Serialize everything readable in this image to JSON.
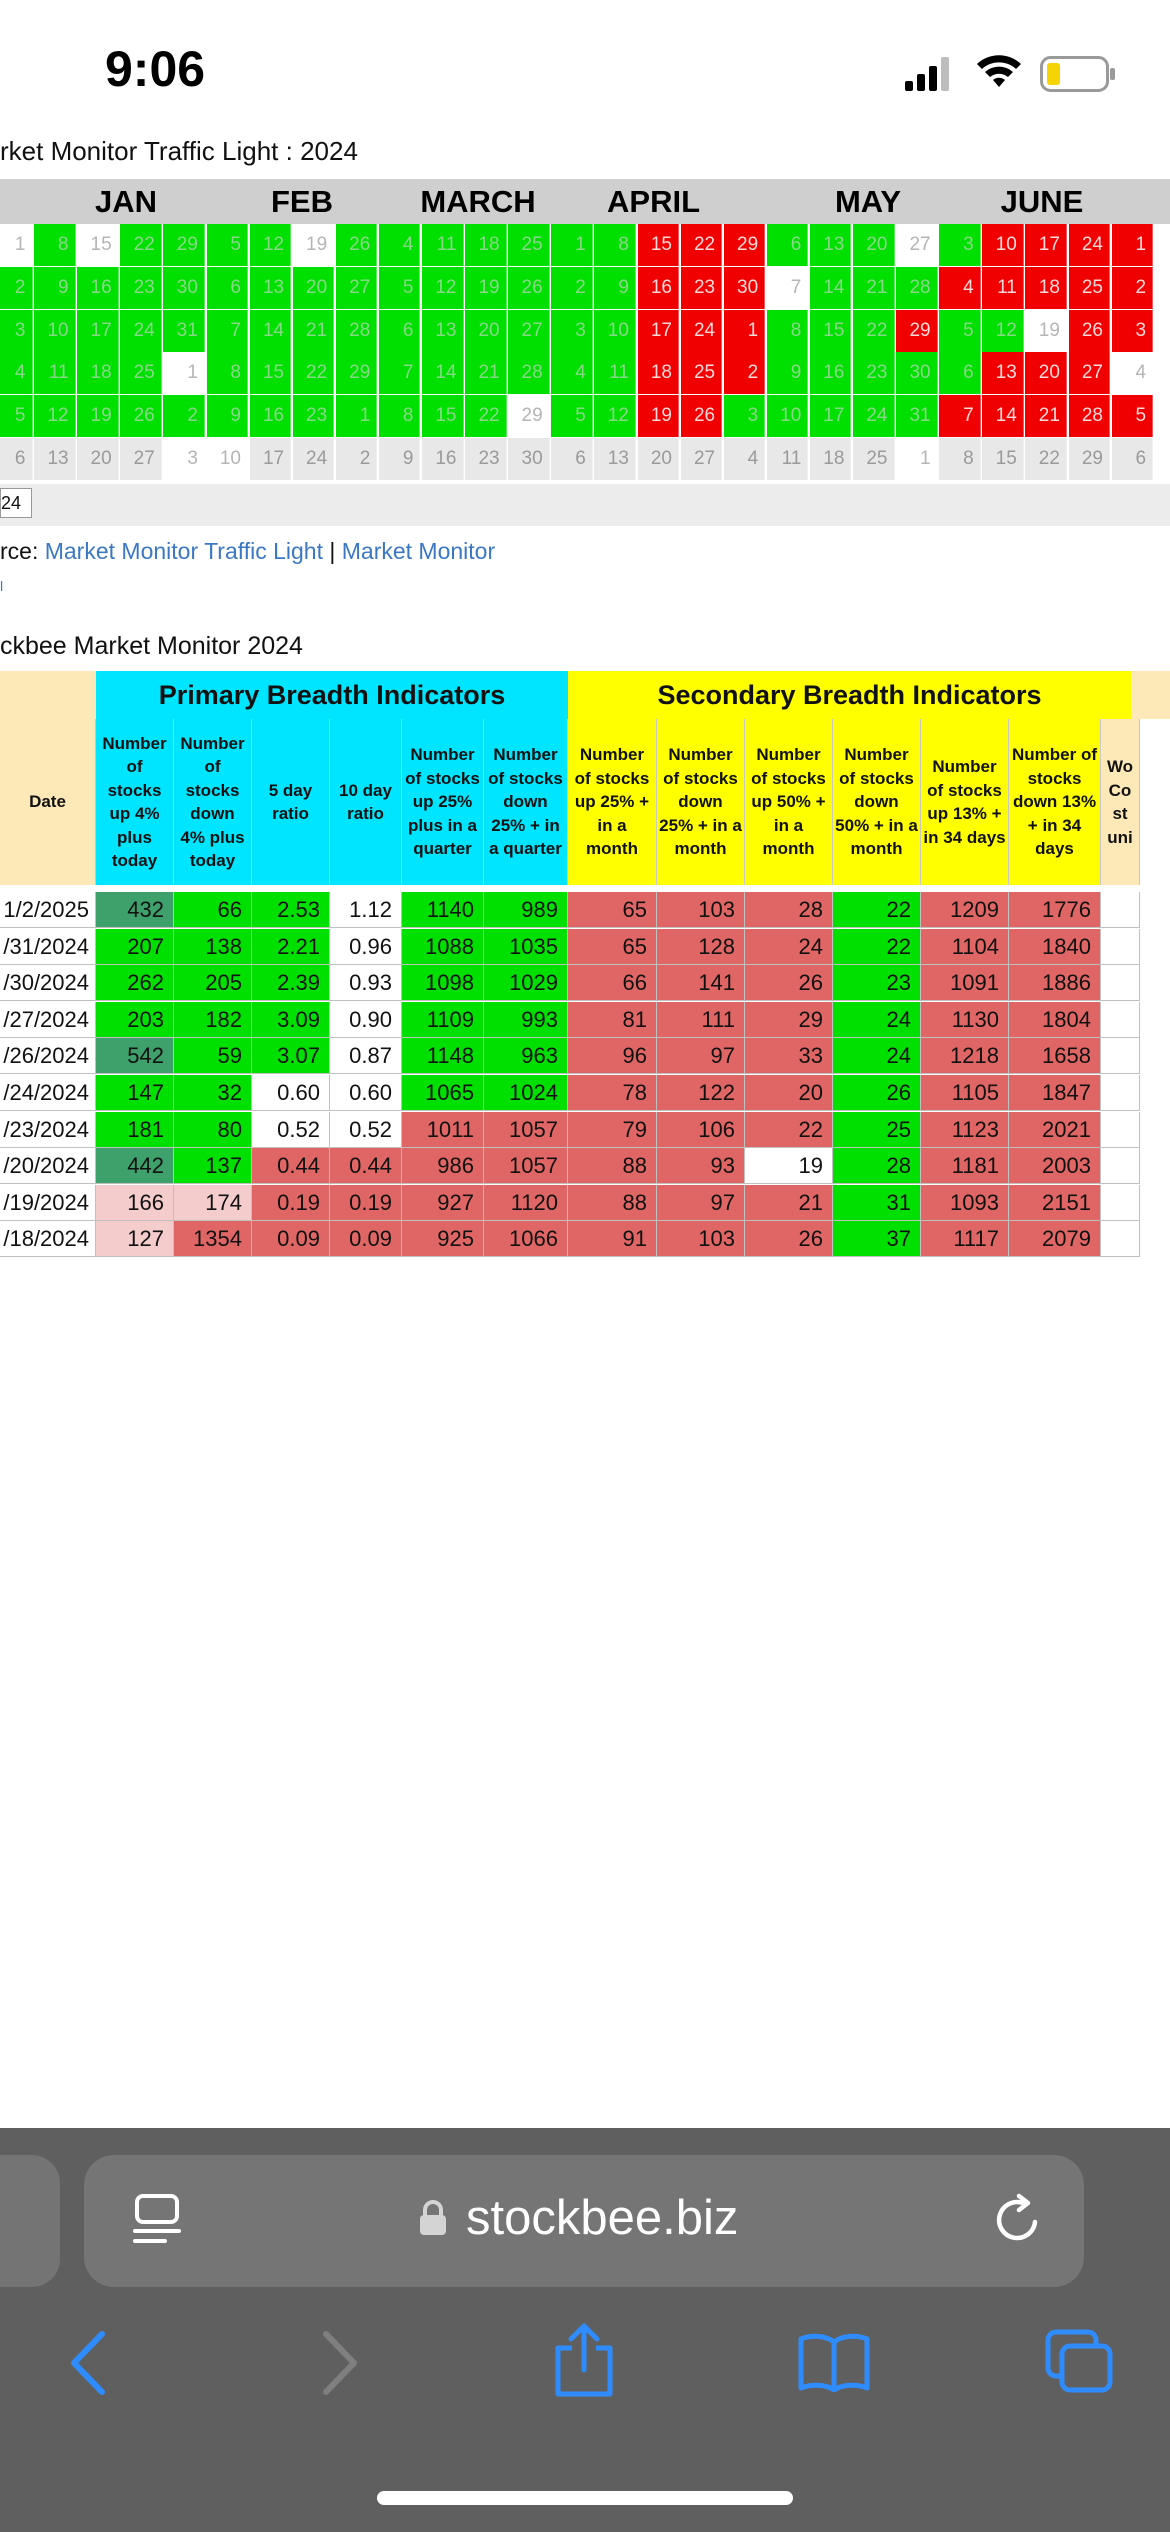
{
  "status_bar": {
    "time": "9:06"
  },
  "traffic_light": {
    "title": "rket Monitor Traffic Light : 2024",
    "months": [
      "JAN",
      "FEB",
      "MARCH",
      "APRIL",
      "MAY",
      "JUNE"
    ],
    "year_tag": "24",
    "columns": [
      [
        "1",
        "2",
        "3",
        "4",
        "5",
        "6"
      ],
      [
        "8",
        "9",
        "10",
        "11",
        "12",
        "13"
      ],
      [
        "15",
        "16",
        "17",
        "18",
        "19",
        "20"
      ],
      [
        "22",
        "23",
        "24",
        "25",
        "26",
        "27"
      ],
      [
        "29",
        "30",
        "31",
        "1",
        "2",
        "3"
      ],
      [
        "5",
        "6",
        "7",
        "8",
        "9",
        "10"
      ],
      [
        "12",
        "13",
        "14",
        "15",
        "16",
        "17"
      ],
      [
        "19",
        "20",
        "21",
        "22",
        "23",
        "24"
      ],
      [
        "26",
        "27",
        "28",
        "29",
        "1",
        "2"
      ],
      [
        "4",
        "5",
        "6",
        "7",
        "8",
        "9"
      ],
      [
        "11",
        "12",
        "13",
        "14",
        "15",
        "16"
      ],
      [
        "18",
        "19",
        "20",
        "21",
        "22",
        "23"
      ],
      [
        "25",
        "26",
        "27",
        "28",
        "29",
        "30"
      ],
      [
        "1",
        "2",
        "3",
        "4",
        "5",
        "6"
      ],
      [
        "8",
        "9",
        "10",
        "11",
        "12",
        "13"
      ],
      [
        "15",
        "16",
        "17",
        "18",
        "19",
        "20"
      ],
      [
        "22",
        "23",
        "24",
        "25",
        "26",
        "27"
      ],
      [
        "29",
        "30",
        "1",
        "2",
        "3",
        "4"
      ],
      [
        "6",
        "7",
        "8",
        "9",
        "10",
        "11"
      ],
      [
        "13",
        "14",
        "15",
        "16",
        "17",
        "18"
      ],
      [
        "20",
        "21",
        "22",
        "23",
        "24",
        "25"
      ],
      [
        "27",
        "28",
        "29",
        "30",
        "31",
        "1"
      ],
      [
        "3",
        "4",
        "5",
        "6",
        "7",
        "8"
      ],
      [
        "10",
        "11",
        "12",
        "13",
        "14",
        "15"
      ],
      [
        "17",
        "18",
        "19",
        "20",
        "21",
        "22"
      ],
      [
        "24",
        "25",
        "26",
        "27",
        "28",
        "29"
      ],
      [
        "1",
        "2",
        "3",
        "4",
        "5",
        "6"
      ]
    ],
    "colors": [
      [
        "w",
        "g",
        "g",
        "g",
        "g",
        "gray"
      ],
      [
        "g",
        "g",
        "g",
        "g",
        "g",
        "gray"
      ],
      [
        "w",
        "g",
        "g",
        "g",
        "g",
        "gray"
      ],
      [
        "g",
        "g",
        "g",
        "g",
        "g",
        "gray"
      ],
      [
        "g",
        "g",
        "g",
        "w",
        "g",
        "w"
      ],
      [
        "g",
        "g",
        "g",
        "g",
        "g",
        "w"
      ],
      [
        "g",
        "g",
        "g",
        "g",
        "g",
        "gray"
      ],
      [
        "w",
        "g",
        "g",
        "g",
        "g",
        "gray"
      ],
      [
        "g",
        "g",
        "g",
        "g",
        "g",
        "gray"
      ],
      [
        "g",
        "g",
        "g",
        "g",
        "g",
        "gray"
      ],
      [
        "g",
        "g",
        "g",
        "g",
        "g",
        "gray"
      ],
      [
        "g",
        "g",
        "g",
        "g",
        "g",
        "gray"
      ],
      [
        "g",
        "g",
        "g",
        "g",
        "w",
        "gray"
      ],
      [
        "g",
        "g",
        "g",
        "g",
        "g",
        "gray"
      ],
      [
        "g",
        "g",
        "g",
        "g",
        "g",
        "gray"
      ],
      [
        "r",
        "r",
        "r",
        "r",
        "r",
        "gray"
      ],
      [
        "r",
        "r",
        "r",
        "r",
        "r",
        "gray"
      ],
      [
        "r",
        "r",
        "r",
        "r",
        "g",
        "gray"
      ],
      [
        "g",
        "w",
        "g",
        "g",
        "g",
        "gray"
      ],
      [
        "g",
        "g",
        "g",
        "g",
        "g",
        "gray"
      ],
      [
        "g",
        "g",
        "g",
        "g",
        "g",
        "gray"
      ],
      [
        "w",
        "g",
        "r",
        "g",
        "g",
        "w"
      ],
      [
        "g",
        "r",
        "g",
        "g",
        "r",
        "gray"
      ],
      [
        "r",
        "r",
        "g",
        "r",
        "r",
        "gray"
      ],
      [
        "r",
        "r",
        "w",
        "r",
        "r",
        "gray"
      ],
      [
        "r",
        "r",
        "r",
        "r",
        "r",
        "gray"
      ],
      [
        "r",
        "r",
        "r",
        "w",
        "r",
        "gray"
      ]
    ]
  },
  "source": {
    "prefix": "rce: ",
    "link1": "Market Monitor Traffic Light",
    "sep": " | ",
    "link2": "Market Monitor",
    "tiny": "l"
  },
  "market_monitor": {
    "title": "ckbee Market Monitor 2024",
    "primary_label": "Primary Breadth Indicators",
    "secondary_label": "Secondary Breadth Indicators",
    "headers": [
      "Date",
      "Number of stocks up 4% plus today",
      "Number of stocks down 4% plus today",
      "5 day ratio",
      "10 day ratio",
      "Number of stocks up 25% plus in a quarter",
      "Number of stocks down 25% + in a quarter",
      "Number of stocks up 25% + in a month",
      "Number of stocks down 25% + in a month",
      "Number of stocks up 50% + in a month",
      "Number of stocks down 50% + in a month",
      "Number of stocks up 13% + in 34 days",
      "Number of stocks down 13% + in 34 days",
      "Wo Co st uni"
    ],
    "rows": [
      [
        "1/2/2025",
        "432",
        "66",
        "2.53",
        "1.12",
        "1140",
        "989",
        "65",
        "103",
        "28",
        "22",
        "1209",
        "1776"
      ],
      [
        "/31/2024",
        "207",
        "138",
        "2.21",
        "0.96",
        "1088",
        "1035",
        "65",
        "128",
        "24",
        "22",
        "1104",
        "1840"
      ],
      [
        "/30/2024",
        "262",
        "205",
        "2.39",
        "0.93",
        "1098",
        "1029",
        "66",
        "141",
        "26",
        "23",
        "1091",
        "1886"
      ],
      [
        "/27/2024",
        "203",
        "182",
        "3.09",
        "0.90",
        "1109",
        "993",
        "81",
        "111",
        "29",
        "24",
        "1130",
        "1804"
      ],
      [
        "/26/2024",
        "542",
        "59",
        "3.07",
        "0.87",
        "1148",
        "963",
        "96",
        "97",
        "33",
        "24",
        "1218",
        "1658"
      ],
      [
        "/24/2024",
        "147",
        "32",
        "0.60",
        "0.60",
        "1065",
        "1024",
        "78",
        "122",
        "20",
        "26",
        "1105",
        "1847"
      ],
      [
        "/23/2024",
        "181",
        "80",
        "0.52",
        "0.52",
        "1011",
        "1057",
        "79",
        "106",
        "22",
        "25",
        "1123",
        "2021"
      ],
      [
        "/20/2024",
        "442",
        "137",
        "0.44",
        "0.44",
        "986",
        "1057",
        "88",
        "93",
        "19",
        "28",
        "1181",
        "2003"
      ],
      [
        "/19/2024",
        "166",
        "174",
        "0.19",
        "0.19",
        "927",
        "1120",
        "88",
        "97",
        "21",
        "31",
        "1093",
        "2151"
      ],
      [
        "/18/2024",
        "127",
        "1354",
        "0.09",
        "0.09",
        "925",
        "1066",
        "91",
        "103",
        "26",
        "37",
        "1117",
        "2079"
      ]
    ],
    "cell_colors": [
      [
        "d",
        "dg",
        "g",
        "g",
        "w",
        "g",
        "g",
        "r",
        "r",
        "r",
        "g",
        "r",
        "r"
      ],
      [
        "d",
        "g",
        "g",
        "g",
        "w",
        "g",
        "g",
        "r",
        "r",
        "r",
        "g",
        "r",
        "r"
      ],
      [
        "d",
        "g",
        "g",
        "g",
        "w",
        "g",
        "g",
        "r",
        "r",
        "r",
        "g",
        "r",
        "r"
      ],
      [
        "d",
        "g",
        "g",
        "g",
        "w",
        "g",
        "g",
        "r",
        "r",
        "r",
        "g",
        "r",
        "r"
      ],
      [
        "d",
        "dg",
        "g",
        "g",
        "w",
        "g",
        "g",
        "r",
        "r",
        "r",
        "g",
        "r",
        "r"
      ],
      [
        "d",
        "g",
        "g",
        "w",
        "w",
        "g",
        "g",
        "r",
        "r",
        "r",
        "g",
        "r",
        "r"
      ],
      [
        "d",
        "g",
        "g",
        "w",
        "w",
        "r",
        "r",
        "r",
        "r",
        "r",
        "g",
        "r",
        "r"
      ],
      [
        "d",
        "dg",
        "g",
        "r",
        "r",
        "r",
        "r",
        "r",
        "r",
        "w",
        "g",
        "r",
        "r"
      ],
      [
        "d",
        "p",
        "p",
        "r",
        "r",
        "r",
        "r",
        "r",
        "r",
        "r",
        "g",
        "r",
        "r"
      ],
      [
        "d",
        "p",
        "r",
        "r",
        "r",
        "r",
        "r",
        "r",
        "r",
        "r",
        "g",
        "r",
        "r"
      ]
    ]
  },
  "browser": {
    "url": "stockbee.biz"
  },
  "colors": {
    "green": "#00e000",
    "red": "#f00000",
    "cyan": "#00e5ff",
    "yellow": "#ffff00",
    "date_header": "#fde9b8",
    "table_red": "#e06666",
    "table_dark_green": "#3ea06a",
    "link": "#3a78c4"
  }
}
